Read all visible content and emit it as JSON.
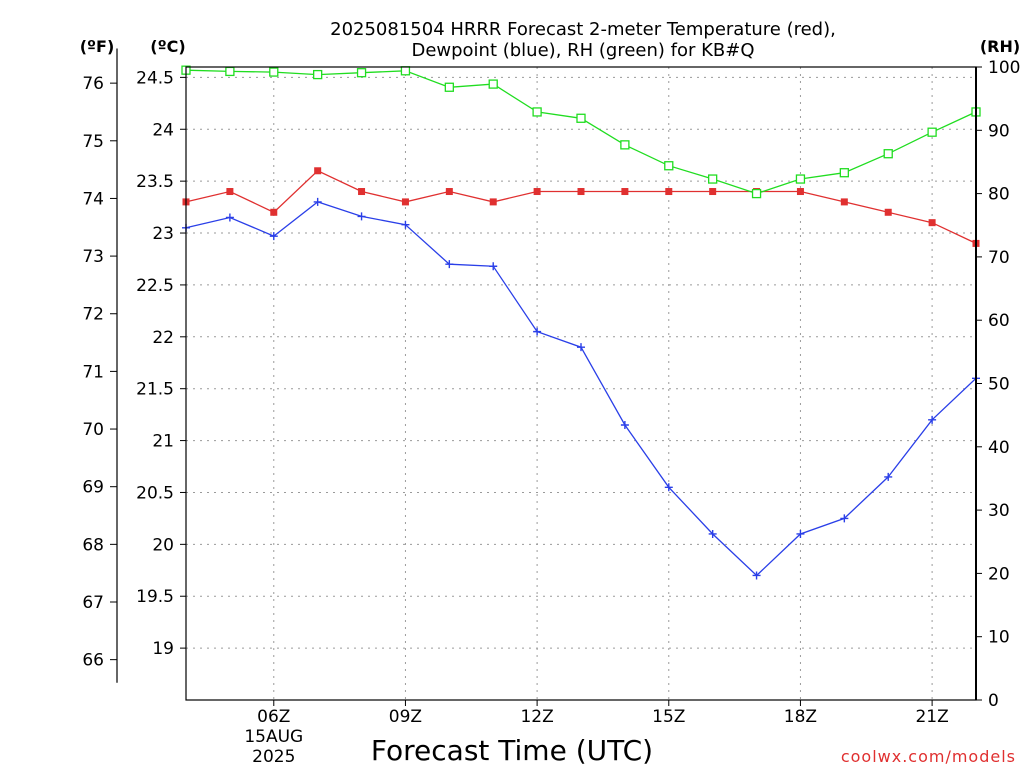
{
  "chart_data": {
    "type": "line",
    "title_line1": "2025081504 HRRR Forecast 2-meter Temperature (red),",
    "title_line2": "Dewpoint (blue), RH (green) for KB#Q",
    "xlabel": "Forecast Time (UTC)",
    "far_left_unit": "(ºF)",
    "left_unit": "(ºC)",
    "right_unit": "(RH)",
    "credit": "coolwx.com/models",
    "x_hours": [
      4,
      5,
      6,
      7,
      8,
      9,
      10,
      11,
      12,
      13,
      14,
      15,
      16,
      17,
      18,
      19,
      20,
      21,
      22
    ],
    "xlim": [
      4,
      22
    ],
    "x_ticks": [
      {
        "hour": 6,
        "label": "06Z",
        "sub1": "15AUG",
        "sub2": "2025"
      },
      {
        "hour": 9,
        "label": "09Z"
      },
      {
        "hour": 12,
        "label": "12Z"
      },
      {
        "hour": 15,
        "label": "15Z"
      },
      {
        "hour": 18,
        "label": "18Z"
      },
      {
        "hour": 21,
        "label": "21Z"
      }
    ],
    "celsius_axis": {
      "lim": [
        18.5,
        24.6
      ],
      "ticks": [
        19,
        19.5,
        20,
        20.5,
        21,
        21.5,
        22,
        22.5,
        23,
        23.5,
        24,
        24.5
      ],
      "tick_labels": [
        "19",
        "19.5",
        "20",
        "20.5",
        "21",
        "21.5",
        "22",
        "22.5",
        "23",
        "23.5",
        "24",
        "24.5"
      ]
    },
    "fahrenheit_axis": {
      "ticks": [
        66,
        67,
        68,
        69,
        70,
        71,
        72,
        73,
        74,
        75,
        76
      ],
      "tick_labels": [
        "66",
        "67",
        "68",
        "69",
        "70",
        "71",
        "72",
        "73",
        "74",
        "75",
        "76"
      ]
    },
    "rh_axis": {
      "lim": [
        0,
        100
      ],
      "ticks": [
        0,
        10,
        20,
        30,
        40,
        50,
        60,
        70,
        80,
        90,
        100
      ],
      "tick_labels": [
        "0",
        "10",
        "20",
        "30",
        "40",
        "50",
        "60",
        "70",
        "80",
        "90",
        "100"
      ]
    },
    "grid": true,
    "series": [
      {
        "key": "temperature",
        "axis": "celsius",
        "color": "#e03030",
        "marker": "filled-square",
        "values": [
          23.3,
          23.4,
          23.2,
          23.6,
          23.4,
          23.3,
          23.4,
          23.3,
          23.4,
          23.4,
          23.4,
          23.4,
          23.4,
          23.4,
          23.4,
          23.3,
          23.2,
          23.1,
          22.9
        ]
      },
      {
        "key": "dewpoint",
        "axis": "celsius",
        "color": "#2a3fe8",
        "marker": "plus",
        "values": [
          23.05,
          23.15,
          22.97,
          23.3,
          23.16,
          23.08,
          22.7,
          22.68,
          22.05,
          21.9,
          21.15,
          20.55,
          20.1,
          19.7,
          20.1,
          20.25,
          20.65,
          21.2,
          21.6
        ]
      },
      {
        "key": "rh",
        "axis": "rh",
        "color": "#20dd20",
        "marker": "open-square",
        "values": [
          99.5,
          99.3,
          99.2,
          98.8,
          99.1,
          99.4,
          96.8,
          97.3,
          92.9,
          91.9,
          87.7,
          84.4,
          82.3,
          80.0,
          82.3,
          83.3,
          86.3,
          89.7,
          92.9
        ]
      }
    ]
  }
}
